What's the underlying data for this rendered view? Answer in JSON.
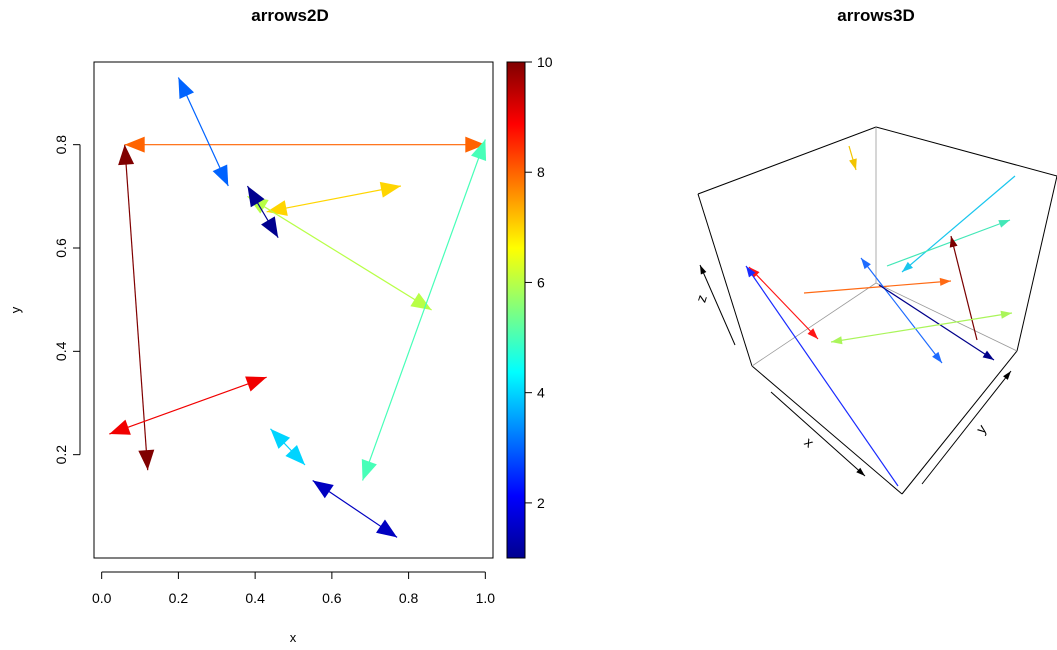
{
  "chart_data": [
    {
      "type": "arrows",
      "title": "arrows2D",
      "xlabel": "x",
      "ylabel": "y",
      "xlim": [
        -0.02,
        1.02
      ],
      "ylim": [
        0.0,
        0.96
      ],
      "xticks": [
        "0.0",
        "0.2",
        "0.4",
        "0.6",
        "0.8",
        "1.0"
      ],
      "yticks": [
        "0.2",
        "0.4",
        "0.6",
        "0.8"
      ],
      "code": "both",
      "arrows": [
        {
          "x0": 0.06,
          "y0": 0.8,
          "x1": 0.12,
          "y1": 0.17,
          "value": 10
        },
        {
          "x0": 0.02,
          "y0": 0.24,
          "x1": 0.43,
          "y1": 0.35,
          "value": 9
        },
        {
          "x0": 0.06,
          "y0": 0.8,
          "x1": 1.0,
          "y1": 0.8,
          "value": 8
        },
        {
          "x0": 0.43,
          "y0": 0.67,
          "x1": 0.78,
          "y1": 0.72,
          "value": 7
        },
        {
          "x0": 0.38,
          "y0": 0.7,
          "x1": 0.86,
          "y1": 0.48,
          "value": 6
        },
        {
          "x0": 1.0,
          "y0": 0.81,
          "x1": 0.68,
          "y1": 0.15,
          "value": 5
        },
        {
          "x0": 0.44,
          "y0": 0.25,
          "x1": 0.53,
          "y1": 0.18,
          "value": 4
        },
        {
          "x0": 0.2,
          "y0": 0.93,
          "x1": 0.33,
          "y1": 0.72,
          "value": 3
        },
        {
          "x0": 0.55,
          "y0": 0.15,
          "x1": 0.77,
          "y1": 0.04,
          "value": 1.5
        },
        {
          "x0": 0.38,
          "y0": 0.72,
          "x1": 0.46,
          "y1": 0.62,
          "value": 1
        }
      ],
      "colorkey": {
        "min": 1,
        "max": 10,
        "ticks": [
          "2",
          "4",
          "6",
          "8",
          "10"
        ],
        "palette": "jet"
      }
    },
    {
      "type": "arrows3D",
      "title": "arrows3D",
      "axis_labels": {
        "x": "x",
        "y": "y",
        "z": "z"
      },
      "arrows": [
        {
          "color": "#f2c400"
        },
        {
          "color": "#19c6ee"
        },
        {
          "color": "#43e7b7"
        },
        {
          "color": "#7a0000"
        },
        {
          "color": "#ff6a14"
        },
        {
          "color": "#1e6bff"
        },
        {
          "color": "#00008a"
        },
        {
          "color": "#ff1616"
        },
        {
          "color": "#1a2bff"
        },
        {
          "color": "#aaf55a"
        }
      ]
    }
  ]
}
